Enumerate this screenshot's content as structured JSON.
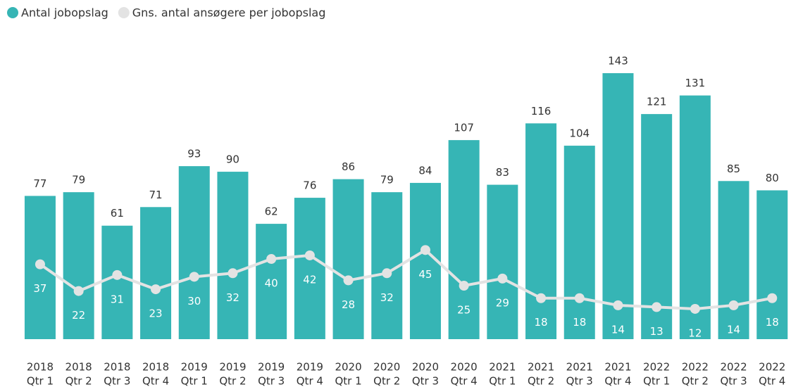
{
  "chart_data": {
    "type": "bar_line",
    "categories": [
      [
        "2018",
        "Qtr 1"
      ],
      [
        "2018",
        "Qtr 2"
      ],
      [
        "2018",
        "Qtr 3"
      ],
      [
        "2018",
        "Qtr 4"
      ],
      [
        "2019",
        "Qtr 1"
      ],
      [
        "2019",
        "Qtr 2"
      ],
      [
        "2019",
        "Qtr 3"
      ],
      [
        "2019",
        "Qtr 4"
      ],
      [
        "2020",
        "Qtr 1"
      ],
      [
        "2020",
        "Qtr 2"
      ],
      [
        "2020",
        "Qtr 3"
      ],
      [
        "2020",
        "Qtr 4"
      ],
      [
        "2021",
        "Qtr 1"
      ],
      [
        "2021",
        "Qtr 2"
      ],
      [
        "2021",
        "Qtr 3"
      ],
      [
        "2021",
        "Qtr 4"
      ],
      [
        "2022",
        "Qtr 1"
      ],
      [
        "2022",
        "Qtr 2"
      ],
      [
        "2022",
        "Qtr 3"
      ],
      [
        "2022",
        "Qtr 4"
      ]
    ],
    "series": [
      {
        "name": "Antal jobopslag",
        "color": "#36b5b5",
        "kind": "bar",
        "values": [
          77,
          79,
          61,
          71,
          93,
          90,
          62,
          76,
          86,
          79,
          84,
          107,
          83,
          116,
          104,
          143,
          121,
          131,
          85,
          80
        ]
      },
      {
        "name": "Gns. antal ansøgere per jobopslag",
        "color": "#e3e3e3",
        "kind": "line",
        "axis": "y2",
        "values": [
          37,
          22,
          31,
          23,
          30,
          32,
          40,
          42,
          28,
          32,
          45,
          25,
          29,
          18,
          18,
          14,
          13,
          12,
          14,
          18
        ]
      }
    ],
    "ylim": [
      0,
      160
    ],
    "y2lim": [
      -5,
      162
    ]
  }
}
